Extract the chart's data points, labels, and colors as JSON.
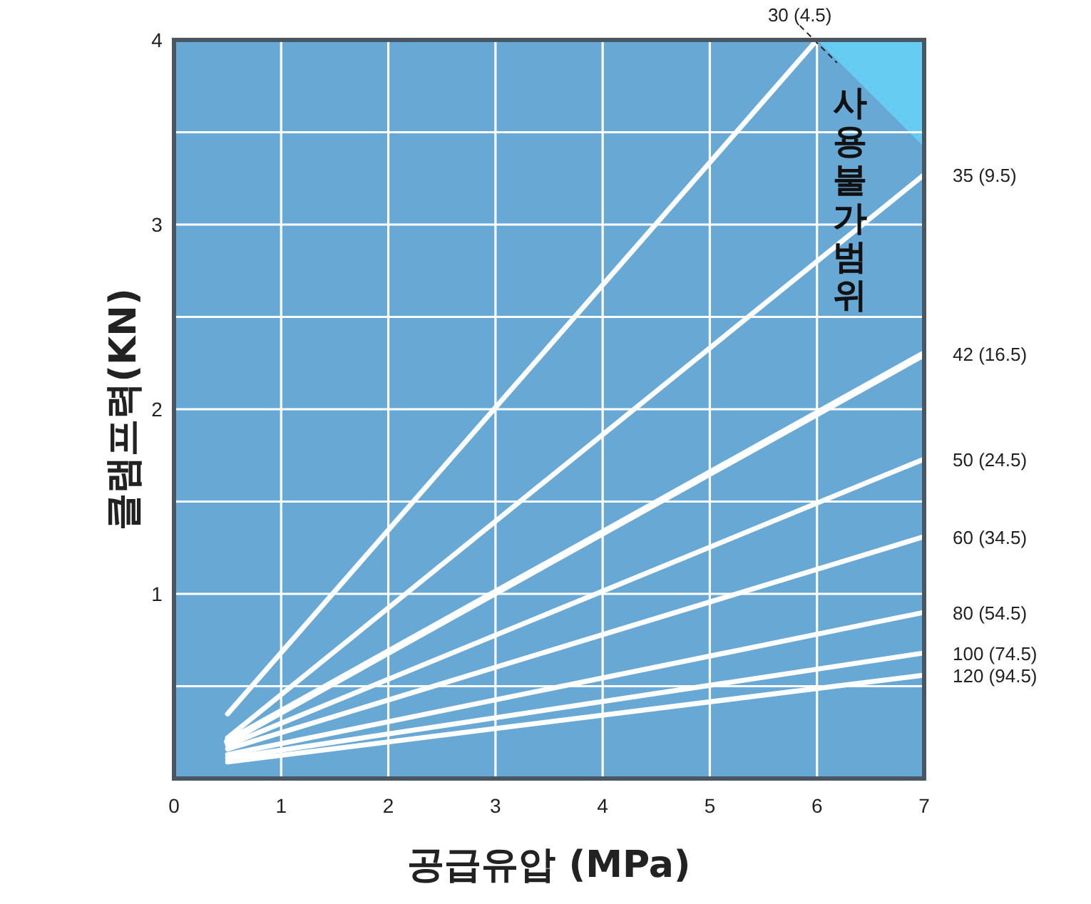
{
  "chart_data": {
    "type": "line",
    "xlabel": "공급유압 (MPa)",
    "ylabel": "클램프력(KN)",
    "xlim": [
      0,
      7
    ],
    "xticks": [
      0,
      1,
      2,
      3,
      4,
      5,
      6,
      7
    ],
    "ylim": [
      0,
      4
    ],
    "yticks": [
      {
        "value": 0,
        "label": null
      },
      {
        "value": 0.5,
        "label": null
      },
      1,
      {
        "value": 1.5,
        "label": null
      },
      2,
      {
        "value": 2.5,
        "label": null
      },
      3,
      {
        "value": 3.5,
        "label": null
      },
      4
    ],
    "grid": true,
    "marker": "none",
    "line_style": "solid",
    "annotations": [
      "사용불가범위"
    ],
    "series": [
      {
        "name": "30 (4.5)",
        "color": "#ffffff",
        "x": [
          0.5,
          6
        ],
        "values": [
          0.35,
          4
        ]
      },
      {
        "name": "35 (9.5)",
        "color": "#ffffff",
        "x": [
          0.5,
          7
        ],
        "values": [
          0.22,
          3.27
        ]
      },
      {
        "name": "42 (16.5)",
        "color": "#ffffff",
        "x": [
          0.5,
          7
        ],
        "values": [
          0.2,
          2.3
        ]
      },
      {
        "name": "50 (24.5)",
        "color": "#ffffff",
        "x": [
          0.5,
          7
        ],
        "values": [
          0.18,
          1.73
        ]
      },
      {
        "name": "60 (34.5)",
        "color": "#ffffff",
        "x": [
          0.5,
          7
        ],
        "values": [
          0.16,
          1.31
        ]
      },
      {
        "name": "80 (54.5)",
        "color": "#ffffff",
        "x": [
          0.5,
          7
        ],
        "values": [
          0.13,
          0.9
        ]
      },
      {
        "name": "100 (74.5)",
        "color": "#ffffff",
        "x": [
          0.5,
          7
        ],
        "values": [
          0.11,
          0.68
        ]
      },
      {
        "name": "120 (94.5)",
        "color": "#ffffff",
        "x": [
          0.5,
          7
        ],
        "values": [
          0.09,
          0.56
        ]
      }
    ]
  }
}
